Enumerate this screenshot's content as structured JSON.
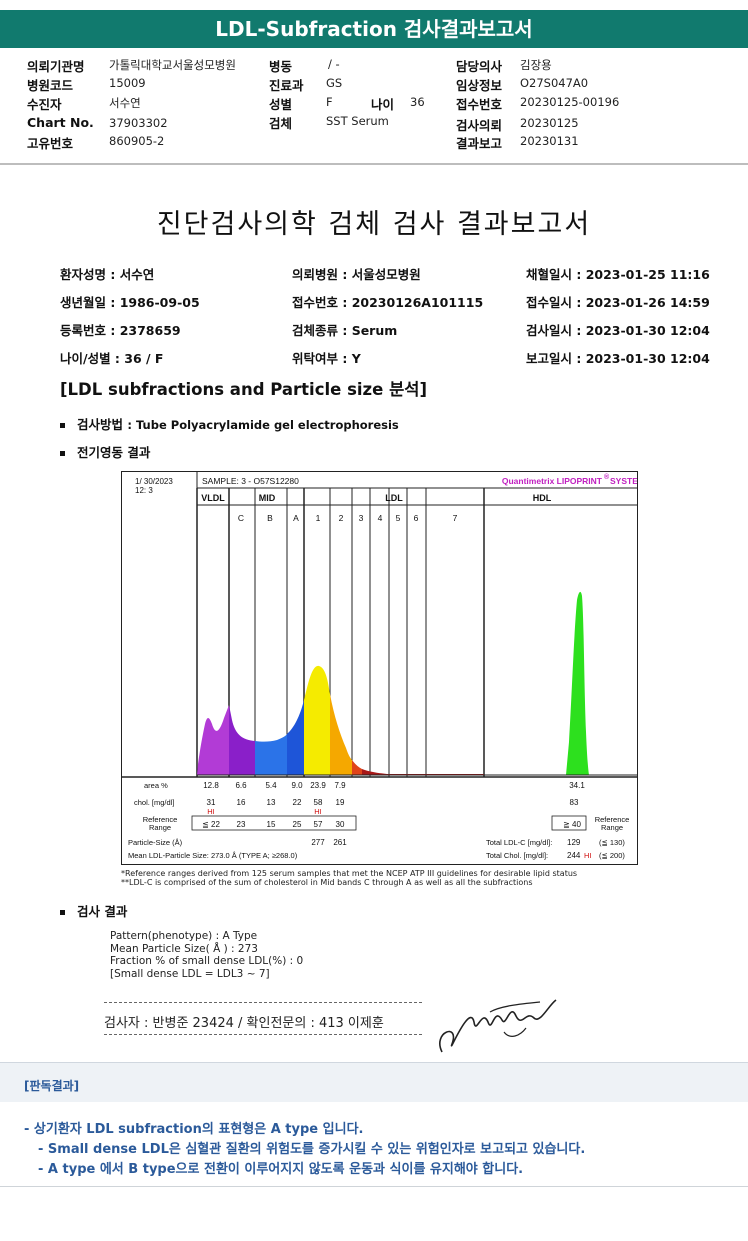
{
  "header": {
    "title": "LDL-Subfraction 검사결과보고서"
  },
  "info": {
    "col1": [
      {
        "label": "의뢰기관명",
        "value": "가톨릭대학교서울성모병원"
      },
      {
        "label": "병원코드",
        "value": "15009"
      },
      {
        "label": "수진자",
        "value": "서수연"
      },
      {
        "label": "Chart No.",
        "value": "37903302"
      },
      {
        "label": "고유번호",
        "value": "860905-2"
      }
    ],
    "col2": [
      {
        "label": "병동",
        "value": "/ -"
      },
      {
        "label": "진료과",
        "value": "GS"
      },
      {
        "label": "성별",
        "value": "F"
      },
      {
        "label": "검체",
        "value": "SST Serum"
      }
    ],
    "age_label": "나이",
    "age_value": "36",
    "col3": [
      {
        "label": "담당의사",
        "value": "김장용"
      },
      {
        "label": "임상정보",
        "value": "O27S047A0"
      },
      {
        "label": "접수번호",
        "value": "20230125-00196"
      },
      {
        "label": "검사의뢰",
        "value": "20230125"
      },
      {
        "label": "결과보고",
        "value": "20230131"
      }
    ]
  },
  "report": {
    "title": "진단검사의학 검체 검사 결과보고서",
    "patient": [
      [
        "환자성명 : 서수연",
        "의뢰병원 : 서울성모병원",
        "채혈일시 : 2023-01-25 11:16"
      ],
      [
        "생년월일 : 1986-09-05",
        "접수번호 : 20230126A101115",
        "접수일시 : 2023-01-26 14:59"
      ],
      [
        "등록번호 : 2378659",
        "검체종류 : Serum",
        "검사일시 : 2023-01-30 12:04"
      ],
      [
        "나이/성별 : 36 / F",
        "위탁여부 :  Y",
        "보고일시 : 2023-01-30 12:04"
      ]
    ],
    "section_title": "[LDL subfractions and Particle size 분석]",
    "method_label": "검사방법",
    "method_value": ": Tube Polyacrylamide gel electrophoresis",
    "electro_label": "전기영동 결과",
    "result_label": "검사 결과",
    "result_lines": [
      "Pattern(phenotype) : A Type",
      "Mean Particle Size( Å ) : 273",
      "Fraction % of small dense LDL(%) : 0",
      "[Small dense LDL = LDL3 ~ 7]"
    ],
    "signature_text": "검사자 : 반병준  23424  /  확인전문의 : 413  이제훈"
  },
  "chart_data": {
    "type": "area",
    "header_date": "1/ 30/2023",
    "header_num": "12:  3",
    "sample": "SAMPLE:    3 - O57S12280",
    "brand": "Quantimetrix LIPOPRINT",
    "brand_mark": "®",
    "brand_suffix": "SYSTEM",
    "groups": [
      "VLDL",
      "MID",
      "LDL",
      "HDL"
    ],
    "bands": [
      "C",
      "B",
      "A",
      "1",
      "2",
      "3",
      "4",
      "5",
      "6",
      "7"
    ],
    "band_colors": {
      "VLDL": "#b23bd6",
      "C": "#8a1fc9",
      "B": "#2b73e8",
      "A": "#1e55d8",
      "L1": "#f5eb00",
      "L2": "#f5a800",
      "L3": "#e0441a",
      "L4": "#a81818",
      "tail": "#a81818",
      "HDL": "#2de01e"
    },
    "row_labels": {
      "area": "area %",
      "chol": "chol. [mg/dl]",
      "ref": "Reference\nRange"
    },
    "area_pct": [
      "12.8",
      "6.6",
      "5.4",
      "9.0",
      "23.9",
      "7.9"
    ],
    "hdl_area": "34.1",
    "chol": [
      "31",
      "16",
      "13",
      "22",
      "58",
      "19"
    ],
    "chol_flags": [
      "HI",
      "",
      "",
      "",
      "HI",
      ""
    ],
    "hdl_chol": "83",
    "ref": [
      "≦ 22",
      "23",
      "15",
      "25",
      "57",
      "30"
    ],
    "hdl_ref": "≧ 40",
    "particle_label": "Particle-Size (Å)",
    "particle_values": [
      "277",
      "261"
    ],
    "mean_ldl": "Mean LDL-Particle Size:   273.0 Å   (TYPE A; ≥268.0)",
    "total_ldl_label": "Total LDL-C [mg/dl]:",
    "total_ldl": "129",
    "total_ldl_ref": "(≦ 130)",
    "total_chol_label": "Total Chol. [mg/dl]:",
    "total_chol": "244",
    "total_chol_flag": "HI",
    "total_chol_ref": "(≦ 200)",
    "notes": [
      "*Reference ranges derived from 125 serum samples that met the NCEP ATP III guidelines for desirable lipid status",
      "**LDL-C is comprised of the sum of cholesterol in Mid bands C through A as well as all the subfractions"
    ]
  },
  "interpretation": {
    "label": "[판독결과]",
    "lines": [
      "- 상기환자 LDL subfraction의 표현형은 A type 입니다.",
      "- Small dense LDL은 심혈관 질환의 위험도를 증가시킬 수 있는 위험인자로 보고되고 있습니다.",
      "- A type 에서 B type으로 전환이 이루어지지 않도록 운동과 식이를 유지해야 합니다."
    ]
  }
}
